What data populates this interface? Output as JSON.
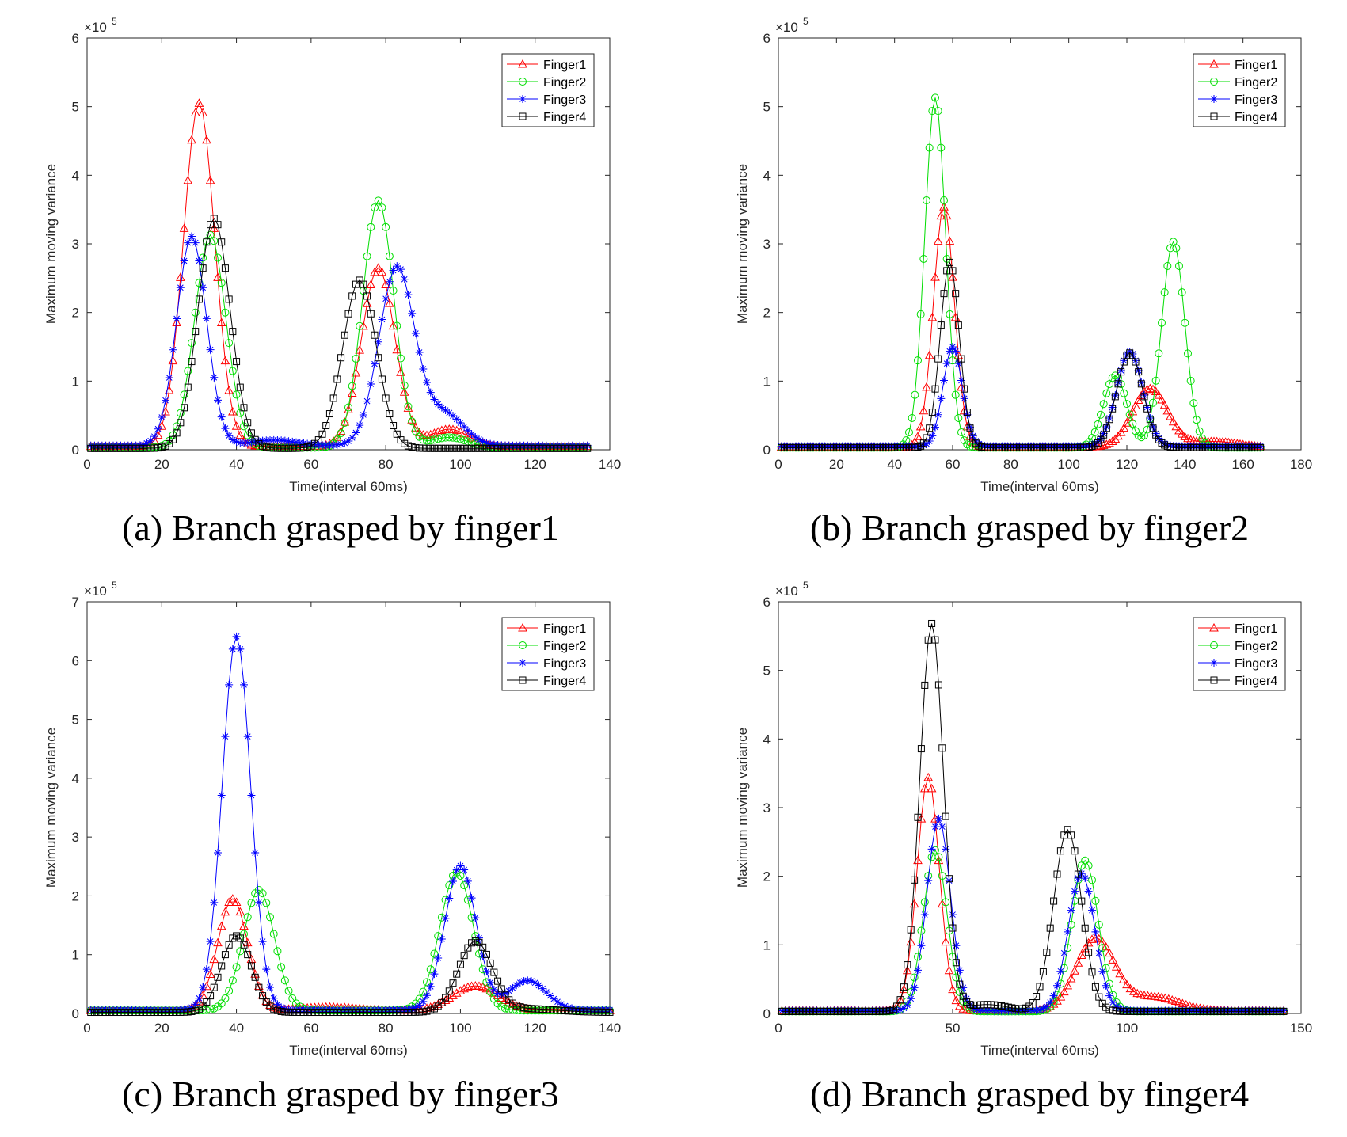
{
  "chart_data": [
    {
      "type": "line",
      "caption": "(a) Branch grasped by finger1",
      "xlabel": "Time(interval 60ms)",
      "ylabel": "Maximum moving variance",
      "exponent_label": "×10",
      "exponent_power": "5",
      "xlim": [
        0,
        140
      ],
      "ylim": [
        0,
        6
      ],
      "xticks": [
        "0",
        "20",
        "40",
        "60",
        "80",
        "100",
        "120",
        "140"
      ],
      "yticks": [
        "0",
        "1",
        "2",
        "3",
        "4",
        "5",
        "6"
      ],
      "legend_position": "top-right",
      "x_end": 134,
      "series": [
        {
          "name": "Finger1",
          "color": "#ff0000",
          "marker": "triangle",
          "baseline": 0.05,
          "peaks": [
            {
              "center": 30,
              "height": 5.0,
              "width": 4.2
            },
            {
              "center": 78,
              "height": 2.6,
              "width": 4.5
            },
            {
              "center": 97,
              "height": 0.25,
              "width": 5
            }
          ]
        },
        {
          "name": "Finger2",
          "color": "#00dd00",
          "marker": "circle",
          "baseline": 0.03,
          "peaks": [
            {
              "center": 33,
              "height": 3.1,
              "width": 4.2
            },
            {
              "center": 78,
              "height": 3.6,
              "width": 4.2
            },
            {
              "center": 97,
              "height": 0.15,
              "width": 5
            }
          ]
        },
        {
          "name": "Finger3",
          "color": "#0000ff",
          "marker": "star",
          "baseline": 0.06,
          "peaks": [
            {
              "center": 28,
              "height": 3.05,
              "width": 4.0
            },
            {
              "center": 83,
              "height": 2.6,
              "width": 4.8
            },
            {
              "center": 96,
              "height": 0.45,
              "width": 5
            },
            {
              "center": 50,
              "height": 0.08,
              "width": 6
            }
          ]
        },
        {
          "name": "Finger4",
          "color": "#000000",
          "marker": "square",
          "baseline": 0.02,
          "peaks": [
            {
              "center": 34,
              "height": 3.35,
              "width": 4.3
            },
            {
              "center": 73,
              "height": 2.45,
              "width": 4.5
            }
          ]
        }
      ]
    },
    {
      "type": "line",
      "caption": "(b) Branch grasped by finger2",
      "xlabel": "Time(interval 60ms)",
      "ylabel": "Maximum moving variance",
      "exponent_label": "×10",
      "exponent_power": "5",
      "xlim": [
        0,
        180
      ],
      "ylim": [
        0,
        6
      ],
      "xticks": [
        "0",
        "20",
        "40",
        "60",
        "80",
        "100",
        "120",
        "140",
        "160",
        "180"
      ],
      "yticks": [
        "0",
        "1",
        "2",
        "3",
        "4",
        "5",
        "6"
      ],
      "legend_position": "top-right",
      "x_end": 166,
      "series": [
        {
          "name": "Finger1",
          "color": "#ff0000",
          "marker": "triangle",
          "baseline": 0.04,
          "peaks": [
            {
              "center": 57,
              "height": 3.5,
              "width": 3.6
            },
            {
              "center": 128,
              "height": 0.85,
              "width": 6
            },
            {
              "center": 150,
              "height": 0.08,
              "width": 8
            }
          ]
        },
        {
          "name": "Finger2",
          "color": "#00dd00",
          "marker": "circle",
          "baseline": 0.03,
          "peaks": [
            {
              "center": 54,
              "height": 5.1,
              "width": 3.6
            },
            {
              "center": 116,
              "height": 1.05,
              "width": 4
            },
            {
              "center": 136,
              "height": 3.0,
              "width": 4
            }
          ]
        },
        {
          "name": "Finger3",
          "color": "#0000ff",
          "marker": "star",
          "baseline": 0.05,
          "peaks": [
            {
              "center": 60,
              "height": 1.45,
              "width": 3.3
            },
            {
              "center": 121,
              "height": 1.38,
              "width": 4.5
            }
          ]
        },
        {
          "name": "Finger4",
          "color": "#000000",
          "marker": "square",
          "baseline": 0.03,
          "peaks": [
            {
              "center": 59,
              "height": 2.7,
              "width": 3.3
            },
            {
              "center": 121,
              "height": 1.38,
              "width": 4.5
            }
          ]
        }
      ]
    },
    {
      "type": "line",
      "caption": "(c) Branch grasped by finger3",
      "xlabel": "Time(interval 60ms)",
      "ylabel": "Maximum moving variance",
      "exponent_label": "×10",
      "exponent_power": "5",
      "xlim": [
        0,
        140
      ],
      "ylim": [
        0,
        7
      ],
      "xticks": [
        "0",
        "20",
        "40",
        "60",
        "80",
        "100",
        "120",
        "140"
      ],
      "yticks": [
        "0",
        "1",
        "2",
        "3",
        "4",
        "5",
        "6",
        "7"
      ],
      "legend_position": "top-right",
      "x_end": 140,
      "series": [
        {
          "name": "Finger1",
          "color": "#ff0000",
          "marker": "triangle",
          "baseline": 0.05,
          "peaks": [
            {
              "center": 39,
              "height": 1.9,
              "width": 4
            },
            {
              "center": 104,
              "height": 0.42,
              "width": 6
            },
            {
              "center": 65,
              "height": 0.06,
              "width": 8
            }
          ]
        },
        {
          "name": "Finger2",
          "color": "#00dd00",
          "marker": "circle",
          "baseline": 0.05,
          "peaks": [
            {
              "center": 46,
              "height": 2.05,
              "width": 4.2
            },
            {
              "center": 99,
              "height": 2.35,
              "width": 4.5
            }
          ]
        },
        {
          "name": "Finger3",
          "color": "#0000ff",
          "marker": "star",
          "baseline": 0.06,
          "peaks": [
            {
              "center": 40,
              "height": 6.35,
              "width": 3.8
            },
            {
              "center": 100,
              "height": 2.45,
              "width": 4.2
            },
            {
              "center": 118,
              "height": 0.5,
              "width": 5
            }
          ]
        },
        {
          "name": "Finger4",
          "color": "#000000",
          "marker": "square",
          "baseline": 0.02,
          "peaks": [
            {
              "center": 40,
              "height": 1.3,
              "width": 4
            },
            {
              "center": 104,
              "height": 1.2,
              "width": 4.5
            },
            {
              "center": 118,
              "height": 0.06,
              "width": 8
            }
          ]
        }
      ]
    },
    {
      "type": "line",
      "caption": "(d) Branch grasped by finger4",
      "xlabel": "Time(interval 60ms)",
      "ylabel": "Maximum moving variance",
      "exponent_label": "×10",
      "exponent_power": "5",
      "xlim": [
        0,
        150
      ],
      "ylim": [
        0,
        6
      ],
      "xticks": [
        "0",
        "50",
        "100",
        "150"
      ],
      "yticks": [
        "0",
        "1",
        "2",
        "3",
        "4",
        "5",
        "6"
      ],
      "legend_position": "top-right",
      "x_end": 145,
      "series": [
        {
          "name": "Finger1",
          "color": "#ff0000",
          "marker": "triangle",
          "baseline": 0.04,
          "peaks": [
            {
              "center": 43,
              "height": 3.4,
              "width": 3.2
            },
            {
              "center": 91,
              "height": 1.05,
              "width": 5.5
            },
            {
              "center": 108,
              "height": 0.2,
              "width": 7
            }
          ]
        },
        {
          "name": "Finger2",
          "color": "#00dd00",
          "marker": "circle",
          "baseline": 0.03,
          "peaks": [
            {
              "center": 45,
              "height": 2.35,
              "width": 3.4
            },
            {
              "center": 88,
              "height": 2.2,
              "width": 3.8
            }
          ]
        },
        {
          "name": "Finger3",
          "color": "#0000ff",
          "marker": "star",
          "baseline": 0.04,
          "peaks": [
            {
              "center": 46,
              "height": 2.8,
              "width": 3.4
            },
            {
              "center": 87,
              "height": 2.0,
              "width": 3.8
            }
          ]
        },
        {
          "name": "Finger4",
          "color": "#000000",
          "marker": "square",
          "baseline": 0.03,
          "peaks": [
            {
              "center": 44,
              "height": 5.65,
              "width": 3.4
            },
            {
              "center": 83,
              "height": 2.65,
              "width": 4
            },
            {
              "center": 60,
              "height": 0.1,
              "width": 6
            }
          ]
        }
      ]
    }
  ]
}
